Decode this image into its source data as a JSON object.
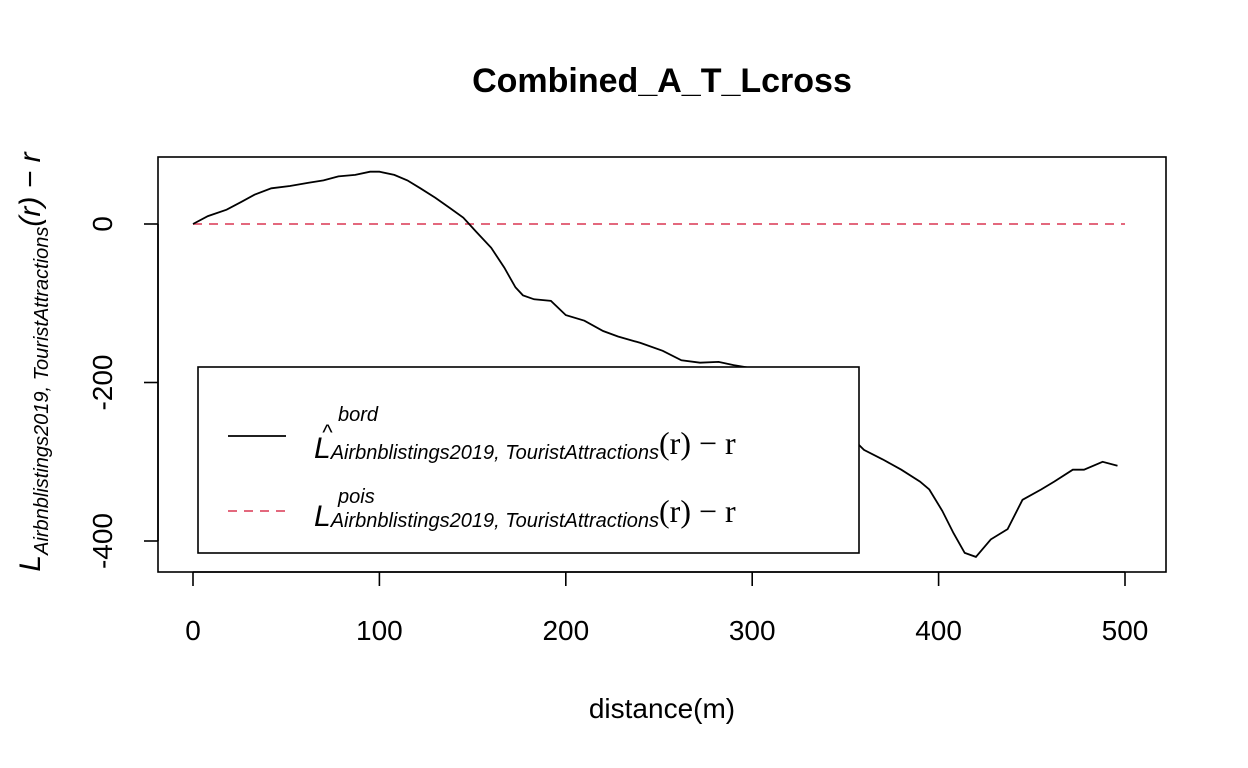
{
  "chart_data": {
    "type": "line",
    "title": "Combined_A_T_Lcross",
    "xlabel": "distance(m)",
    "ylabel": {
      "base": "L",
      "subscript": "Airbnblistings2019, TouristAttractions",
      "suffix": "(r) − r"
    },
    "xlim": [
      0,
      500
    ],
    "ylim": [
      -400,
      50
    ],
    "x_ticks": [
      0,
      100,
      200,
      300,
      400,
      500
    ],
    "y_ticks": [
      -400,
      -200,
      0
    ],
    "x_tick_labels": [
      "0",
      "100",
      "200",
      "300",
      "400",
      "500"
    ],
    "y_tick_labels": [
      "-400",
      "-200",
      "0"
    ],
    "grid": false,
    "legend_position": "bottom-left",
    "series": [
      {
        "name_parts": {
          "base": "L",
          "hat": "^",
          "superscript": "bord",
          "subscript": "Airbnblistings2019, TouristAttractions",
          "suffix": "(r) − r"
        },
        "color": "#000000",
        "dash": "solid",
        "x": [
          0,
          8,
          18,
          26,
          33,
          42,
          52,
          62,
          70,
          78,
          87,
          95,
          100,
          108,
          115,
          122,
          130,
          138,
          145,
          152,
          160,
          167,
          173,
          177,
          183,
          192,
          200,
          210,
          220,
          228,
          240,
          252,
          262,
          272,
          282,
          290,
          300,
          305,
          312,
          320,
          330,
          340,
          350,
          360,
          370,
          380,
          390,
          395,
          402,
          408,
          414,
          420,
          428,
          437,
          445,
          455,
          462,
          472,
          478,
          488,
          496
        ],
        "y": [
          0,
          10,
          18,
          28,
          37,
          45,
          48,
          52,
          55,
          60,
          62,
          66,
          66,
          62,
          55,
          45,
          33,
          20,
          8,
          -10,
          -30,
          -55,
          -80,
          -90,
          -95,
          -97,
          -115,
          -122,
          -135,
          -142,
          -150,
          -160,
          -172,
          -175,
          -174,
          -178,
          -182,
          -190,
          -200,
          -212,
          -225,
          -245,
          -262,
          -285,
          -297,
          -310,
          -325,
          -335,
          -362,
          -390,
          -415,
          -420,
          -398,
          -385,
          -348,
          -335,
          -325,
          -310,
          -310,
          -300,
          -305
        ]
      },
      {
        "name_parts": {
          "base": "L",
          "hat": "",
          "superscript": "pois",
          "subscript": "Airbnblistings2019, TouristAttractions",
          "suffix": "(r) − r"
        },
        "color": "#DF536B",
        "dash": "dashed",
        "x": [
          0,
          500
        ],
        "y": [
          0,
          0
        ]
      }
    ]
  }
}
